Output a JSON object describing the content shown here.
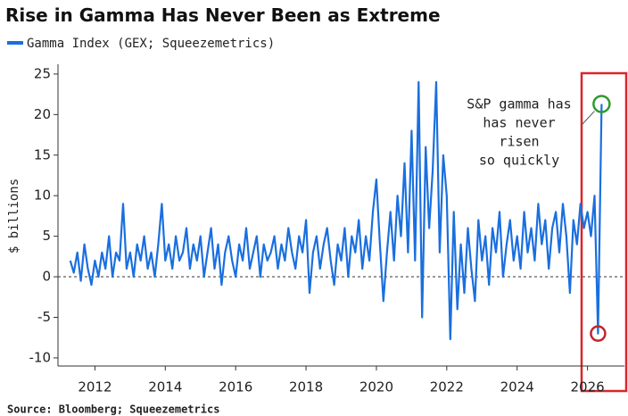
{
  "chart_data": {
    "type": "line",
    "title": "Rise in Gamma Has Never Been as Extreme",
    "y_label": "$ billions",
    "source": "Source: Bloomberg; Squeezemetrics",
    "annotation": [
      "S&P gamma has",
      "has never",
      "risen",
      "so quickly"
    ],
    "x": [
      2011.3,
      2011.4,
      2011.5,
      2011.6,
      2011.7,
      2011.8,
      2011.9,
      2012.0,
      2012.1,
      2012.2,
      2012.3,
      2012.4,
      2012.5,
      2012.6,
      2012.7,
      2012.8,
      2012.9,
      2013.0,
      2013.1,
      2013.2,
      2013.3,
      2013.4,
      2013.5,
      2013.6,
      2013.7,
      2013.8,
      2013.9,
      2014.0,
      2014.1,
      2014.2,
      2014.3,
      2014.4,
      2014.5,
      2014.6,
      2014.7,
      2014.8,
      2014.9,
      2015.0,
      2015.1,
      2015.2,
      2015.3,
      2015.4,
      2015.5,
      2015.6,
      2015.7,
      2015.8,
      2015.9,
      2016.0,
      2016.1,
      2016.2,
      2016.3,
      2016.4,
      2016.5,
      2016.6,
      2016.7,
      2016.8,
      2016.9,
      2017.0,
      2017.1,
      2017.2,
      2017.3,
      2017.4,
      2017.5,
      2017.6,
      2017.7,
      2017.8,
      2017.9,
      2018.0,
      2018.1,
      2018.2,
      2018.3,
      2018.4,
      2018.5,
      2018.6,
      2018.7,
      2018.8,
      2018.9,
      2019.0,
      2019.1,
      2019.2,
      2019.3,
      2019.4,
      2019.5,
      2019.6,
      2019.7,
      2019.8,
      2019.9,
      2020.0,
      2020.1,
      2020.2,
      2020.3,
      2020.4,
      2020.5,
      2020.6,
      2020.7,
      2020.8,
      2020.9,
      2021.0,
      2021.1,
      2021.2,
      2021.3,
      2021.4,
      2021.5,
      2021.6,
      2021.7,
      2021.8,
      2021.9,
      2022.0,
      2022.1,
      2022.2,
      2022.3,
      2022.4,
      2022.5,
      2022.6,
      2022.7,
      2022.8,
      2022.9,
      2023.0,
      2023.1,
      2023.2,
      2023.3,
      2023.4,
      2023.5,
      2023.6,
      2023.7,
      2023.8,
      2023.9,
      2024.0,
      2024.1,
      2024.2,
      2024.3,
      2024.4,
      2024.5,
      2024.6,
      2024.7,
      2024.8,
      2024.9,
      2025.0,
      2025.1,
      2025.2,
      2025.3,
      2025.4,
      2025.5,
      2025.6,
      2025.7,
      2025.8,
      2025.9,
      2026.0,
      2026.1,
      2026.2,
      2026.3,
      2026.4
    ],
    "series": [
      {
        "name": "Gamma Index (GEX; Squeezemetrics)",
        "color": "#1a6fdf",
        "values": [
          2,
          0.5,
          3,
          -0.5,
          4,
          1,
          -1,
          2,
          0,
          3,
          1,
          5,
          0,
          3,
          2,
          9,
          1,
          3,
          0,
          4,
          2,
          5,
          1,
          3,
          0,
          4,
          9,
          2,
          4,
          1,
          5,
          2,
          3,
          6,
          1,
          4,
          2,
          5,
          0,
          3,
          6,
          1,
          4,
          -1,
          3,
          5,
          2,
          0,
          4,
          2,
          6,
          1,
          3,
          5,
          0,
          4,
          2,
          3,
          5,
          1,
          4,
          2,
          6,
          3,
          1,
          5,
          3,
          7,
          -2,
          3,
          5,
          1,
          4,
          6,
          2,
          -1,
          4,
          2,
          6,
          0,
          5,
          3,
          7,
          1,
          5,
          2,
          8,
          12,
          4,
          -3,
          3,
          8,
          2,
          10,
          5,
          14,
          3,
          18,
          2,
          24,
          -5,
          16,
          6,
          13,
          24,
          3,
          15,
          10,
          -7.7,
          8,
          -4,
          4,
          -2,
          6,
          1,
          -3,
          7,
          2,
          5,
          -1,
          6,
          3,
          8,
          0,
          4,
          7,
          2,
          5,
          1,
          8,
          3,
          6,
          2,
          9,
          4,
          7,
          1,
          6,
          8,
          3,
          9,
          5,
          -2,
          7,
          4,
          9,
          6,
          8,
          5,
          10,
          -7,
          21.3
        ]
      }
    ],
    "xlim": [
      2010.95,
      2027.05
    ],
    "ylim": [
      -11,
      26.2
    ],
    "xticks": [
      2012,
      2014,
      2016,
      2018,
      2020,
      2022,
      2024,
      2026
    ],
    "yticks": [
      -10,
      -5,
      0,
      5,
      10,
      15,
      20,
      25
    ]
  }
}
